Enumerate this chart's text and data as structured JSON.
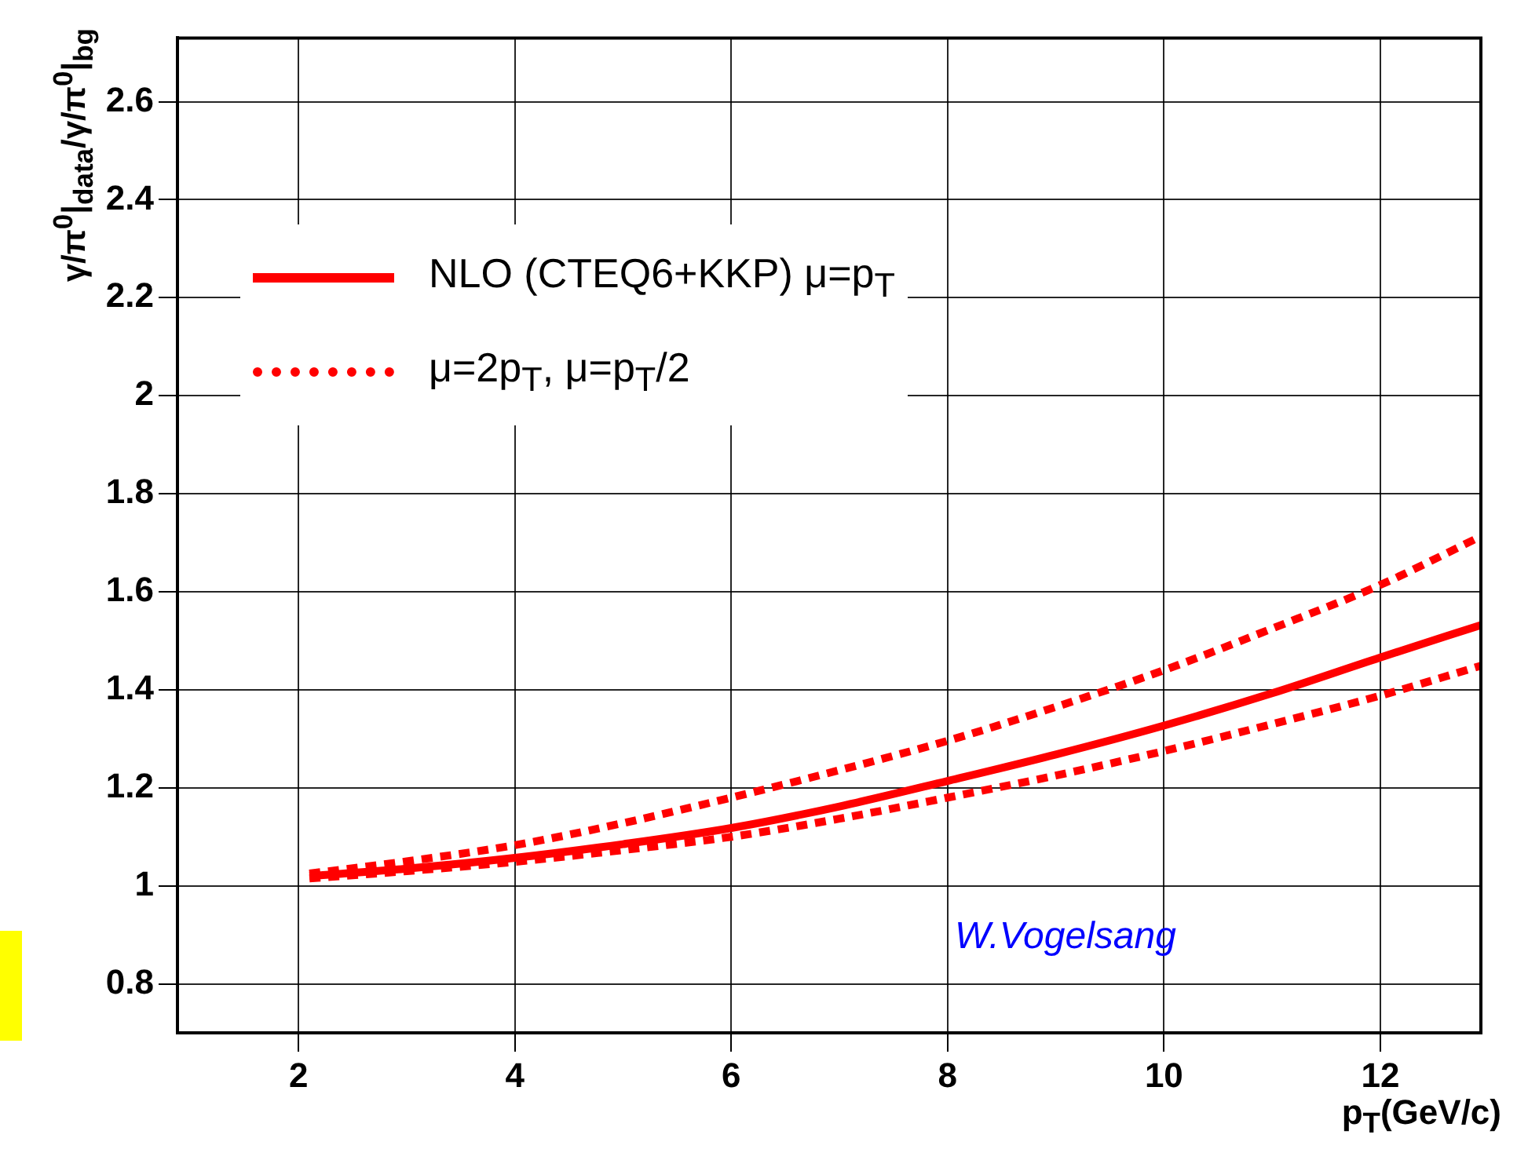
{
  "chart_data": {
    "type": "line",
    "xlabel": "p$_{T}$(GeV/c)",
    "ylabel": "γ/π$^{0}$|$_{data}$/γ/π$^{0}$|$_{bg}$",
    "xlim": [
      0.88,
      12.93
    ],
    "ylim": [
      0.7,
      2.73
    ],
    "xticks": [
      2,
      4,
      6,
      8,
      10,
      12
    ],
    "yticks": [
      0.8,
      1,
      1.2,
      1.4,
      1.6,
      1.8,
      2,
      2.2,
      2.4,
      2.6
    ],
    "grid": true,
    "legend": "top left",
    "marker": "none",
    "series": [
      {
        "name": "NLO (CTEQ6+KKP) μ=p$_{T}$",
        "color": "#ff0000",
        "line_style": "solid",
        "x": [
          2.1,
          3,
          4,
          5,
          6,
          7,
          8,
          9,
          10,
          11,
          12,
          12.93
        ],
        "values": [
          1.02,
          1.035,
          1.057,
          1.085,
          1.118,
          1.162,
          1.214,
          1.268,
          1.327,
          1.393,
          1.466,
          1.532
        ]
      },
      {
        "name": "μ=2p$_{T}$, μ=p$_{T}$/2",
        "color": "#ff0000",
        "line_style": "dotted",
        "x": [
          2.1,
          3,
          4,
          5,
          6,
          7,
          8,
          9,
          10,
          11,
          12,
          12.93
        ],
        "values": [
          1.025,
          1.05,
          1.083,
          1.128,
          1.18,
          1.236,
          1.296,
          1.365,
          1.44,
          1.525,
          1.614,
          1.713
        ]
      },
      {
        "color": "#ff0000",
        "line_style": "dotted",
        "x": [
          2.1,
          3,
          4,
          5,
          6,
          7,
          8,
          9,
          10,
          11,
          12,
          12.93
        ],
        "values": [
          1.015,
          1.03,
          1.049,
          1.073,
          1.1,
          1.137,
          1.18,
          1.225,
          1.275,
          1.33,
          1.388,
          1.449
        ]
      }
    ],
    "annotations": [
      "W.Vogelsang"
    ]
  }
}
